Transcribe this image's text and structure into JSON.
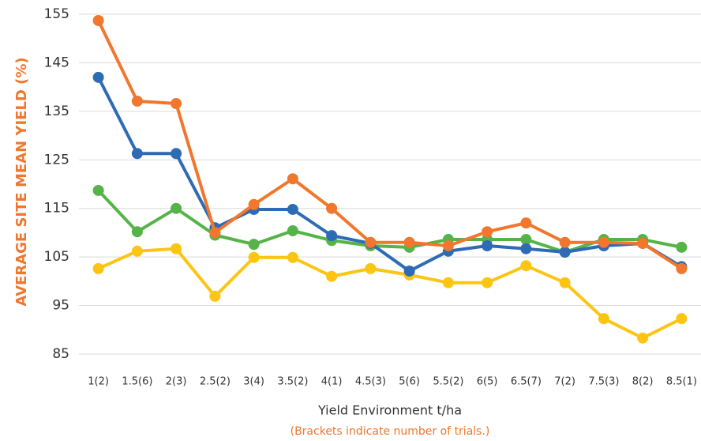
{
  "chart_data": {
    "type": "line",
    "y_label": "AVERAGE SITE MEAN YIELD (%)",
    "x_label": "Yield Environment t/ha",
    "note": "(Brackets indicate number of trials.)",
    "categories": [
      "1(2)",
      "1.5(6)",
      "2(3)",
      "2.5(2)",
      "3(4)",
      "3.5(2)",
      "4(1)",
      "4.5(3)",
      "5(6)",
      "5.5(2)",
      "6(5)",
      "6.5(7)",
      "7(2)",
      "7.5(3)",
      "8(2)",
      "8.5(1)"
    ],
    "series": [
      {
        "color": "#fcc514",
        "values": [
          102.6,
          106.2,
          106.7,
          96.9,
          104.9,
          104.9,
          101,
          102.6,
          101.3,
          99.7,
          99.7,
          103.2,
          99.7,
          92.3,
          88.3,
          92.3
        ]
      },
      {
        "color": "#55b447",
        "values": [
          118.7,
          110.2,
          115,
          109.5,
          107.6,
          110.4,
          108.4,
          107.3,
          107,
          108.6,
          108.6,
          108.6,
          106,
          108.6,
          108.6,
          107
        ]
      },
      {
        "color": "#2e6bb5",
        "values": [
          142,
          126.3,
          126.3,
          111,
          114.8,
          114.8,
          109.4,
          107.8,
          102.1,
          106.2,
          107.3,
          106.7,
          106,
          107.3,
          107.8,
          103
        ]
      },
      {
        "color": "#f0772d",
        "values": [
          153.7,
          137.1,
          136.6,
          110,
          115.8,
          121.1,
          115,
          108,
          108,
          107.3,
          110.2,
          112,
          108,
          108,
          107.8,
          102.6
        ]
      }
    ],
    "ylim": [
      85,
      155
    ],
    "yticks": [
      85,
      95,
      105,
      115,
      125,
      135,
      145,
      155
    ],
    "grid": true
  }
}
